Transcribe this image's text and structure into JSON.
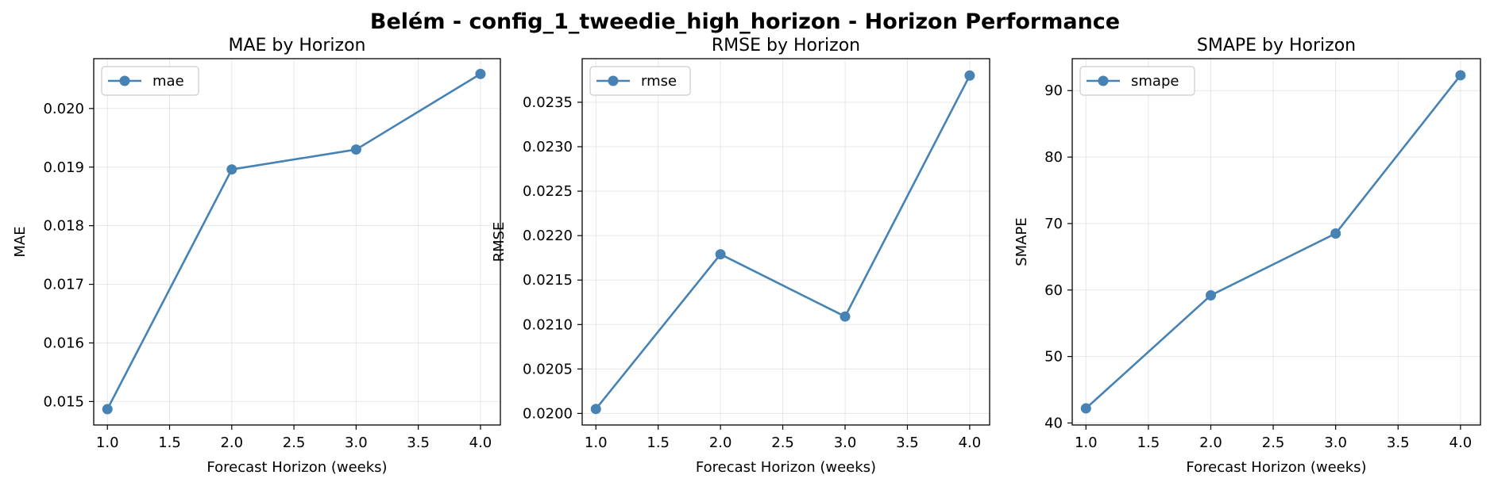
{
  "figure": {
    "suptitle": "Belém - config_1_tweedie_high_horizon - Horizon Performance",
    "line_color": "#4682b4",
    "grid": true
  },
  "chart_data": [
    {
      "type": "line",
      "title": "MAE by Horizon",
      "xlabel": "Forecast Horizon (weeks)",
      "ylabel": "MAE",
      "legend": "top-left",
      "x": [
        1.0,
        2.0,
        3.0,
        4.0
      ],
      "series": [
        {
          "name": "mae",
          "values": [
            0.01487,
            0.01896,
            0.0193,
            0.02059
          ]
        }
      ],
      "xlim": [
        0.89,
        4.16
      ],
      "ylim": [
        0.0146,
        0.02085
      ],
      "xticks": [
        1.0,
        1.5,
        2.0,
        2.5,
        3.0,
        3.5,
        4.0
      ],
      "xtick_labels": [
        "1.0",
        "1.5",
        "2.0",
        "2.5",
        "3.0",
        "3.5",
        "4.0"
      ],
      "yticks": [
        0.015,
        0.016,
        0.017,
        0.018,
        0.019,
        0.02
      ],
      "ytick_labels": [
        "0.015",
        "0.016",
        "0.017",
        "0.018",
        "0.019",
        "0.020"
      ]
    },
    {
      "type": "line",
      "title": "RMSE by Horizon",
      "xlabel": "Forecast Horizon (weeks)",
      "ylabel": "RMSE",
      "legend": "top-left",
      "x": [
        1.0,
        2.0,
        3.0,
        4.0
      ],
      "series": [
        {
          "name": "rmse",
          "values": [
            0.02005,
            0.02179,
            0.02109,
            0.0238
          ]
        }
      ],
      "xlim": [
        0.89,
        4.16
      ],
      "ylim": [
        0.01987,
        0.02399
      ],
      "xticks": [
        1.0,
        1.5,
        2.0,
        2.5,
        3.0,
        3.5,
        4.0
      ],
      "xtick_labels": [
        "1.0",
        "1.5",
        "2.0",
        "2.5",
        "3.0",
        "3.5",
        "4.0"
      ],
      "yticks": [
        0.02,
        0.0205,
        0.021,
        0.0215,
        0.022,
        0.0225,
        0.023,
        0.0235
      ],
      "ytick_labels": [
        "0.0200",
        "0.0205",
        "0.0210",
        "0.0215",
        "0.0220",
        "0.0225",
        "0.0230",
        "0.0235"
      ]
    },
    {
      "type": "line",
      "title": "SMAPE by Horizon",
      "xlabel": "Forecast Horizon (weeks)",
      "ylabel": "SMAPE",
      "legend": "top-left",
      "x": [
        1.0,
        2.0,
        3.0,
        4.0
      ],
      "series": [
        {
          "name": "smape",
          "values": [
            42.2,
            59.2,
            68.5,
            92.3
          ]
        }
      ],
      "xlim": [
        0.89,
        4.16
      ],
      "ylim": [
        39.7,
        94.8
      ],
      "xticks": [
        1.0,
        1.5,
        2.0,
        2.5,
        3.0,
        3.5,
        4.0
      ],
      "xtick_labels": [
        "1.0",
        "1.5",
        "2.0",
        "2.5",
        "3.0",
        "3.5",
        "4.0"
      ],
      "yticks": [
        40,
        50,
        60,
        70,
        80,
        90
      ],
      "ytick_labels": [
        "40",
        "50",
        "60",
        "70",
        "80",
        "90"
      ]
    }
  ]
}
